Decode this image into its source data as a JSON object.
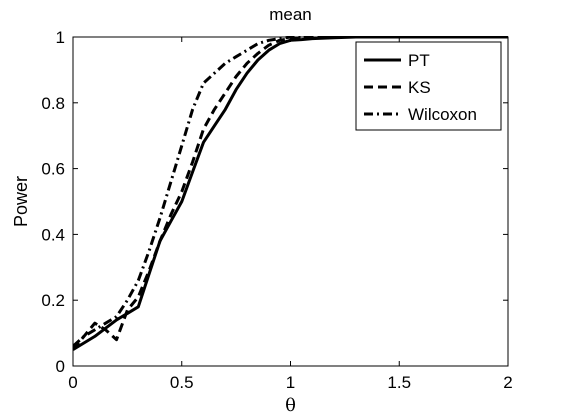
{
  "chart_data": {
    "type": "line",
    "title": "mean",
    "xlabel": "θ",
    "ylabel": "Power",
    "xlim": [
      0,
      2
    ],
    "ylim": [
      0,
      1
    ],
    "xticks": [
      0,
      0.5,
      1,
      1.5,
      2
    ],
    "xtick_labels": [
      "0",
      "0.5",
      "1",
      "1.5",
      "2"
    ],
    "yticks": [
      0,
      0.2,
      0.4,
      0.6,
      0.8,
      1
    ],
    "ytick_labels": [
      "0",
      "0.2",
      "0.4",
      "0.6",
      "0.8",
      "1"
    ],
    "grid": false,
    "legend_position": "top-right",
    "series": [
      {
        "name": "PT",
        "style": "solid",
        "color": "#000000",
        "x": [
          0,
          0.05,
          0.1,
          0.15,
          0.2,
          0.25,
          0.3,
          0.35,
          0.4,
          0.45,
          0.5,
          0.55,
          0.6,
          0.65,
          0.7,
          0.75,
          0.8,
          0.85,
          0.9,
          0.95,
          1.0,
          1.05,
          1.1,
          1.2,
          1.3,
          1.4,
          1.5,
          1.6,
          1.7,
          1.8,
          1.9,
          2.0
        ],
        "y": [
          0.05,
          0.07,
          0.09,
          0.115,
          0.14,
          0.16,
          0.18,
          0.28,
          0.38,
          0.44,
          0.5,
          0.59,
          0.68,
          0.73,
          0.78,
          0.84,
          0.89,
          0.93,
          0.96,
          0.98,
          0.99,
          0.992,
          0.995,
          0.998,
          1,
          1,
          1,
          1,
          1,
          1,
          1,
          1
        ]
      },
      {
        "name": "KS",
        "style": "dashed",
        "color": "#000000",
        "x": [
          0,
          0.05,
          0.1,
          0.15,
          0.2,
          0.25,
          0.3,
          0.35,
          0.4,
          0.45,
          0.5,
          0.55,
          0.6,
          0.65,
          0.7,
          0.75,
          0.8,
          0.85,
          0.9,
          0.95,
          1.0,
          1.05,
          1.1,
          1.2,
          1.3,
          1.4,
          1.5,
          1.6,
          1.7,
          1.8,
          1.9,
          2.0
        ],
        "y": [
          0.05,
          0.09,
          0.13,
          0.11,
          0.08,
          0.17,
          0.21,
          0.29,
          0.38,
          0.46,
          0.53,
          0.62,
          0.72,
          0.78,
          0.83,
          0.88,
          0.92,
          0.95,
          0.975,
          0.99,
          0.995,
          0.998,
          1,
          1,
          1,
          1,
          1,
          1,
          1,
          1,
          1,
          1
        ]
      },
      {
        "name": "Wilcoxon",
        "style": "dashdot",
        "color": "#000000",
        "x": [
          0,
          0.05,
          0.1,
          0.15,
          0.2,
          0.25,
          0.3,
          0.35,
          0.4,
          0.45,
          0.5,
          0.55,
          0.6,
          0.65,
          0.7,
          0.75,
          0.8,
          0.85,
          0.9,
          0.95,
          1.0,
          1.05,
          1.1,
          1.2,
          1.3,
          1.4,
          1.5,
          1.6,
          1.7,
          1.8,
          1.9,
          2.0
        ],
        "y": [
          0.06,
          0.09,
          0.11,
          0.13,
          0.15,
          0.2,
          0.26,
          0.35,
          0.45,
          0.56,
          0.67,
          0.78,
          0.86,
          0.89,
          0.92,
          0.94,
          0.96,
          0.98,
          0.99,
          0.995,
          1,
          1,
          1,
          1,
          1,
          1,
          1,
          1,
          1,
          1,
          1,
          1
        ]
      }
    ]
  }
}
